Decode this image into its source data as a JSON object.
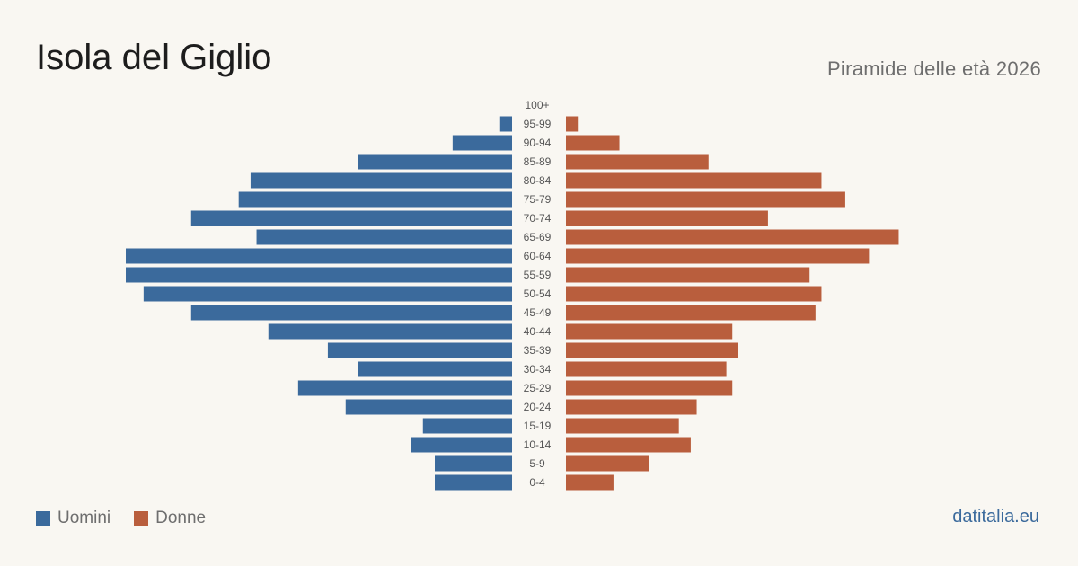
{
  "header": {
    "title": "Isola del Giglio",
    "subtitle": "Piramide delle età 2026"
  },
  "legend": {
    "men_label": "Uomini",
    "women_label": "Donne"
  },
  "footer": {
    "source": "datitalia.eu"
  },
  "colors": {
    "men": "#3b6a9c",
    "women": "#b95e3d",
    "background": "#f9f7f2"
  },
  "chart_data": {
    "type": "bar",
    "orientation": "horizontal-pyramid",
    "categories": [
      "100+",
      "95-99",
      "90-94",
      "85-89",
      "80-84",
      "75-79",
      "70-74",
      "65-69",
      "60-64",
      "55-59",
      "50-54",
      "45-49",
      "40-44",
      "35-39",
      "30-34",
      "25-29",
      "20-24",
      "15-19",
      "10-14",
      "5-9",
      "0-4"
    ],
    "series": [
      {
        "name": "Uomini",
        "values": [
          0,
          2,
          10,
          26,
          44,
          46,
          54,
          43,
          65,
          65,
          62,
          54,
          41,
          31,
          26,
          36,
          28,
          15,
          17,
          13,
          13
        ]
      },
      {
        "name": "Donne",
        "values": [
          0,
          2,
          9,
          24,
          43,
          47,
          34,
          56,
          51,
          41,
          43,
          42,
          28,
          29,
          27,
          28,
          22,
          19,
          21,
          14,
          8
        ]
      }
    ],
    "xlim": [
      0,
      65
    ],
    "legend_position": "bottom-left",
    "grid": false
  }
}
